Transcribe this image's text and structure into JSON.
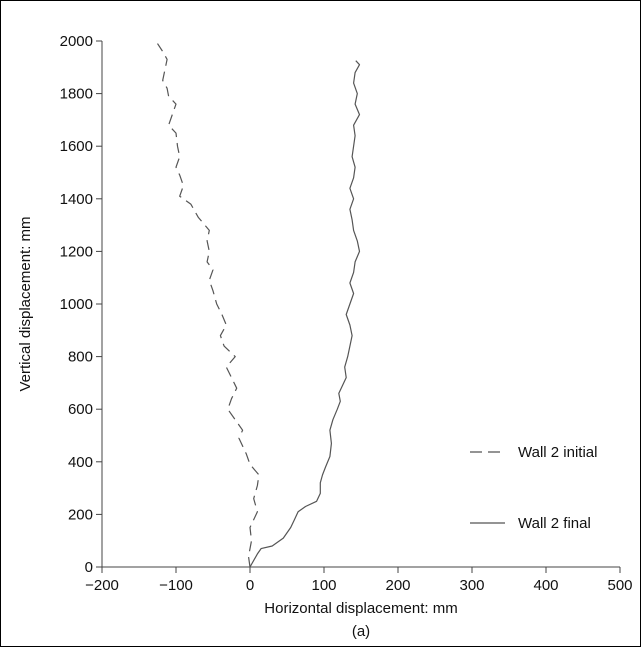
{
  "chart_data": {
    "type": "line",
    "xlabel": "Horizontal displacement: mm",
    "ylabel": "Vertical displacement: mm",
    "caption": "(a)",
    "xlim": [
      -200,
      500
    ],
    "ylim": [
      0,
      2000
    ],
    "xticks": [
      -200,
      -100,
      0,
      100,
      200,
      300,
      400,
      500
    ],
    "yticks": [
      0,
      200,
      400,
      600,
      800,
      1000,
      1200,
      1400,
      1600,
      1800,
      2000
    ],
    "xtick_labels": [
      "−200",
      "−100",
      "0",
      "100",
      "200",
      "300",
      "400",
      "500"
    ],
    "ytick_labels": [
      "0",
      "200",
      "400",
      "600",
      "800",
      "1000",
      "1200",
      "1400",
      "1600",
      "1800",
      "2000"
    ],
    "grid": false,
    "legend_position": "right",
    "series": [
      {
        "name": "Wall 2 initial",
        "style": "dashed",
        "color": "#555555",
        "points": [
          [
            0,
            0
          ],
          [
            -2,
            40
          ],
          [
            2,
            100
          ],
          [
            0,
            150
          ],
          [
            10,
            210
          ],
          [
            5,
            260
          ],
          [
            10,
            310
          ],
          [
            12,
            350
          ],
          [
            0,
            390
          ],
          [
            -5,
            430
          ],
          [
            -15,
            490
          ],
          [
            -10,
            520
          ],
          [
            -20,
            560
          ],
          [
            -30,
            600
          ],
          [
            -25,
            640
          ],
          [
            -18,
            680
          ],
          [
            -25,
            720
          ],
          [
            -32,
            760
          ],
          [
            -20,
            800
          ],
          [
            -35,
            840
          ],
          [
            -40,
            880
          ],
          [
            -32,
            920
          ],
          [
            -38,
            960
          ],
          [
            -45,
            1000
          ],
          [
            -50,
            1050
          ],
          [
            -55,
            1090
          ],
          [
            -50,
            1130
          ],
          [
            -58,
            1160
          ],
          [
            -55,
            1200
          ],
          [
            -58,
            1240
          ],
          [
            -55,
            1280
          ],
          [
            -70,
            1330
          ],
          [
            -80,
            1380
          ],
          [
            -95,
            1410
          ],
          [
            -90,
            1450
          ],
          [
            -95,
            1490
          ],
          [
            -100,
            1520
          ],
          [
            -95,
            1560
          ],
          [
            -98,
            1600
          ],
          [
            -100,
            1650
          ],
          [
            -110,
            1680
          ],
          [
            -105,
            1720
          ],
          [
            -100,
            1760
          ],
          [
            -110,
            1790
          ],
          [
            -112,
            1820
          ],
          [
            -118,
            1850
          ],
          [
            -115,
            1890
          ],
          [
            -112,
            1930
          ],
          [
            -118,
            1960
          ],
          [
            -125,
            1990
          ]
        ]
      },
      {
        "name": "Wall 2 final",
        "style": "solid",
        "color": "#555555",
        "points": [
          [
            0,
            0
          ],
          [
            10,
            50
          ],
          [
            15,
            70
          ],
          [
            30,
            80
          ],
          [
            45,
            110
          ],
          [
            55,
            150
          ],
          [
            60,
            180
          ],
          [
            65,
            210
          ],
          [
            75,
            230
          ],
          [
            90,
            250
          ],
          [
            95,
            280
          ],
          [
            95,
            320
          ],
          [
            98,
            350
          ],
          [
            102,
            380
          ],
          [
            108,
            420
          ],
          [
            110,
            470
          ],
          [
            108,
            520
          ],
          [
            112,
            560
          ],
          [
            118,
            600
          ],
          [
            122,
            630
          ],
          [
            120,
            660
          ],
          [
            125,
            690
          ],
          [
            130,
            720
          ],
          [
            128,
            760
          ],
          [
            132,
            800
          ],
          [
            135,
            840
          ],
          [
            138,
            880
          ],
          [
            135,
            920
          ],
          [
            130,
            960
          ],
          [
            135,
            1000
          ],
          [
            140,
            1040
          ],
          [
            135,
            1080
          ],
          [
            140,
            1120
          ],
          [
            142,
            1160
          ],
          [
            148,
            1200
          ],
          [
            145,
            1240
          ],
          [
            140,
            1280
          ],
          [
            138,
            1320
          ],
          [
            135,
            1360
          ],
          [
            140,
            1400
          ],
          [
            135,
            1440
          ],
          [
            140,
            1480
          ],
          [
            142,
            1520
          ],
          [
            138,
            1560
          ],
          [
            140,
            1600
          ],
          [
            142,
            1640
          ],
          [
            140,
            1680
          ],
          [
            148,
            1720
          ],
          [
            142,
            1760
          ],
          [
            145,
            1800
          ],
          [
            140,
            1840
          ],
          [
            142,
            1880
          ],
          [
            148,
            1910
          ],
          [
            143,
            1925
          ]
        ]
      }
    ]
  }
}
